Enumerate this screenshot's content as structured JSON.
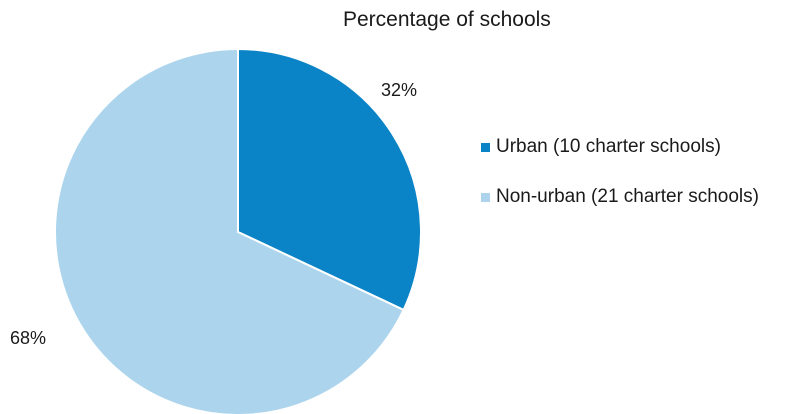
{
  "chart_data": {
    "type": "pie",
    "title": "Percentage of schools",
    "slices": [
      {
        "label": "Urban (10 charter schools)",
        "value": 32,
        "value_label": "32%",
        "color": "#0a84c6"
      },
      {
        "label": "Non-urban (21 charter schools)",
        "value": 68,
        "value_label": "68%",
        "color": "#acd5ed"
      }
    ],
    "legend_position": "right",
    "start_angle": "top, clockwise"
  }
}
